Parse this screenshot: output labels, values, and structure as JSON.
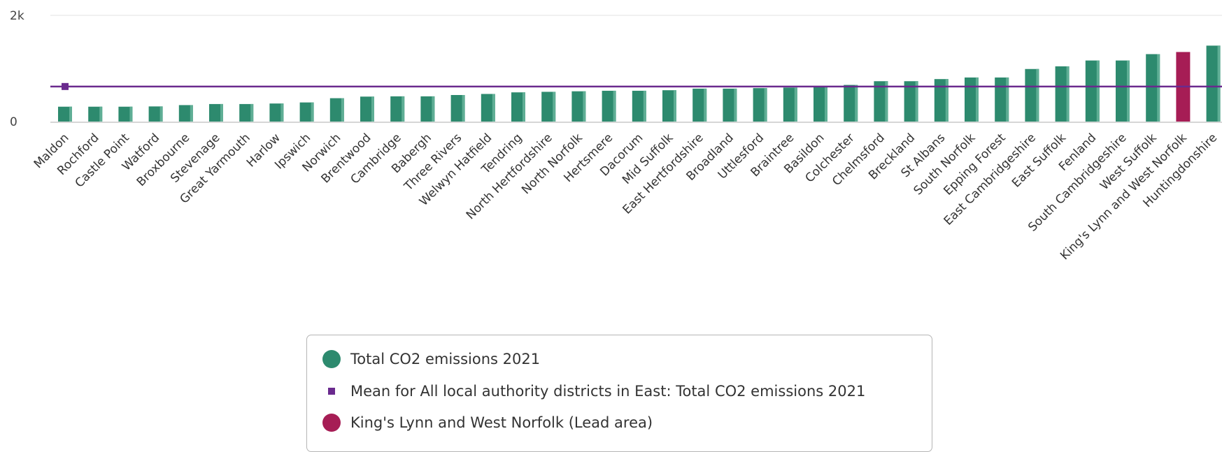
{
  "chart_data": {
    "type": "bar",
    "categories": [
      "Maldon",
      "Rochford",
      "Castle Point",
      "Watford",
      "Broxbourne",
      "Stevenage",
      "Great Yarmouth",
      "Harlow",
      "Ipswich",
      "Norwich",
      "Brentwood",
      "Cambridge",
      "Babergh",
      "Three Rivers",
      "Welwyn Hatfield",
      "Tendring",
      "North Hertfordshire",
      "North Norfolk",
      "Hertsmere",
      "Dacorum",
      "Mid Suffolk",
      "East Hertfordshire",
      "Broadland",
      "Uttlesford",
      "Braintree",
      "Basildon",
      "Colchester",
      "Chelmsford",
      "Breckland",
      "St Albans",
      "South Norfolk",
      "Epping Forest",
      "East Cambridgeshire",
      "East Suffolk",
      "Fenland",
      "South Cambridgeshire",
      "West Suffolk",
      "King's Lynn and West Norfolk",
      "Huntingdonshire"
    ],
    "series": [
      {
        "name": "Total CO2 emissions 2021",
        "values": [
          280,
          280,
          280,
          285,
          310,
          330,
          330,
          340,
          360,
          440,
          470,
          475,
          475,
          500,
          520,
          550,
          560,
          570,
          580,
          580,
          590,
          620,
          620,
          630,
          640,
          660,
          690,
          760,
          760,
          800,
          830,
          830,
          990,
          1040,
          1150,
          1150,
          1270,
          1310,
          1430
        ]
      }
    ],
    "mean_line": {
      "name": "Mean for All local authority districts in East: Total CO2 emissions 2021",
      "value": 660
    },
    "highlight": {
      "name": "King's Lynn and West Norfolk (Lead area)",
      "category": "King's Lynn and West Norfolk"
    },
    "ylim": [
      0,
      2000
    ],
    "y_ticks": [
      {
        "value": 0,
        "label": "0"
      },
      {
        "value": 2000,
        "label": "2k"
      }
    ],
    "grid": true,
    "legend_position": "bottom"
  },
  "colors": {
    "bar": "#2d8a6e",
    "bar_shade": "#5fae95",
    "highlight": "#a61d55",
    "mean": "#6a2a8e",
    "grid": "#e3e3e3",
    "axis": "#c8c8c8"
  },
  "legend": {
    "items": [
      {
        "label": "Total CO2 emissions 2021",
        "shape": "circle",
        "color": "#2d8a6e"
      },
      {
        "label": "Mean for All local authority districts in East: Total CO2 emissions 2021",
        "shape": "square",
        "color": "#6a2a8e"
      },
      {
        "label": "King's Lynn and West Norfolk (Lead area)",
        "shape": "circle",
        "color": "#a61d55"
      }
    ]
  }
}
